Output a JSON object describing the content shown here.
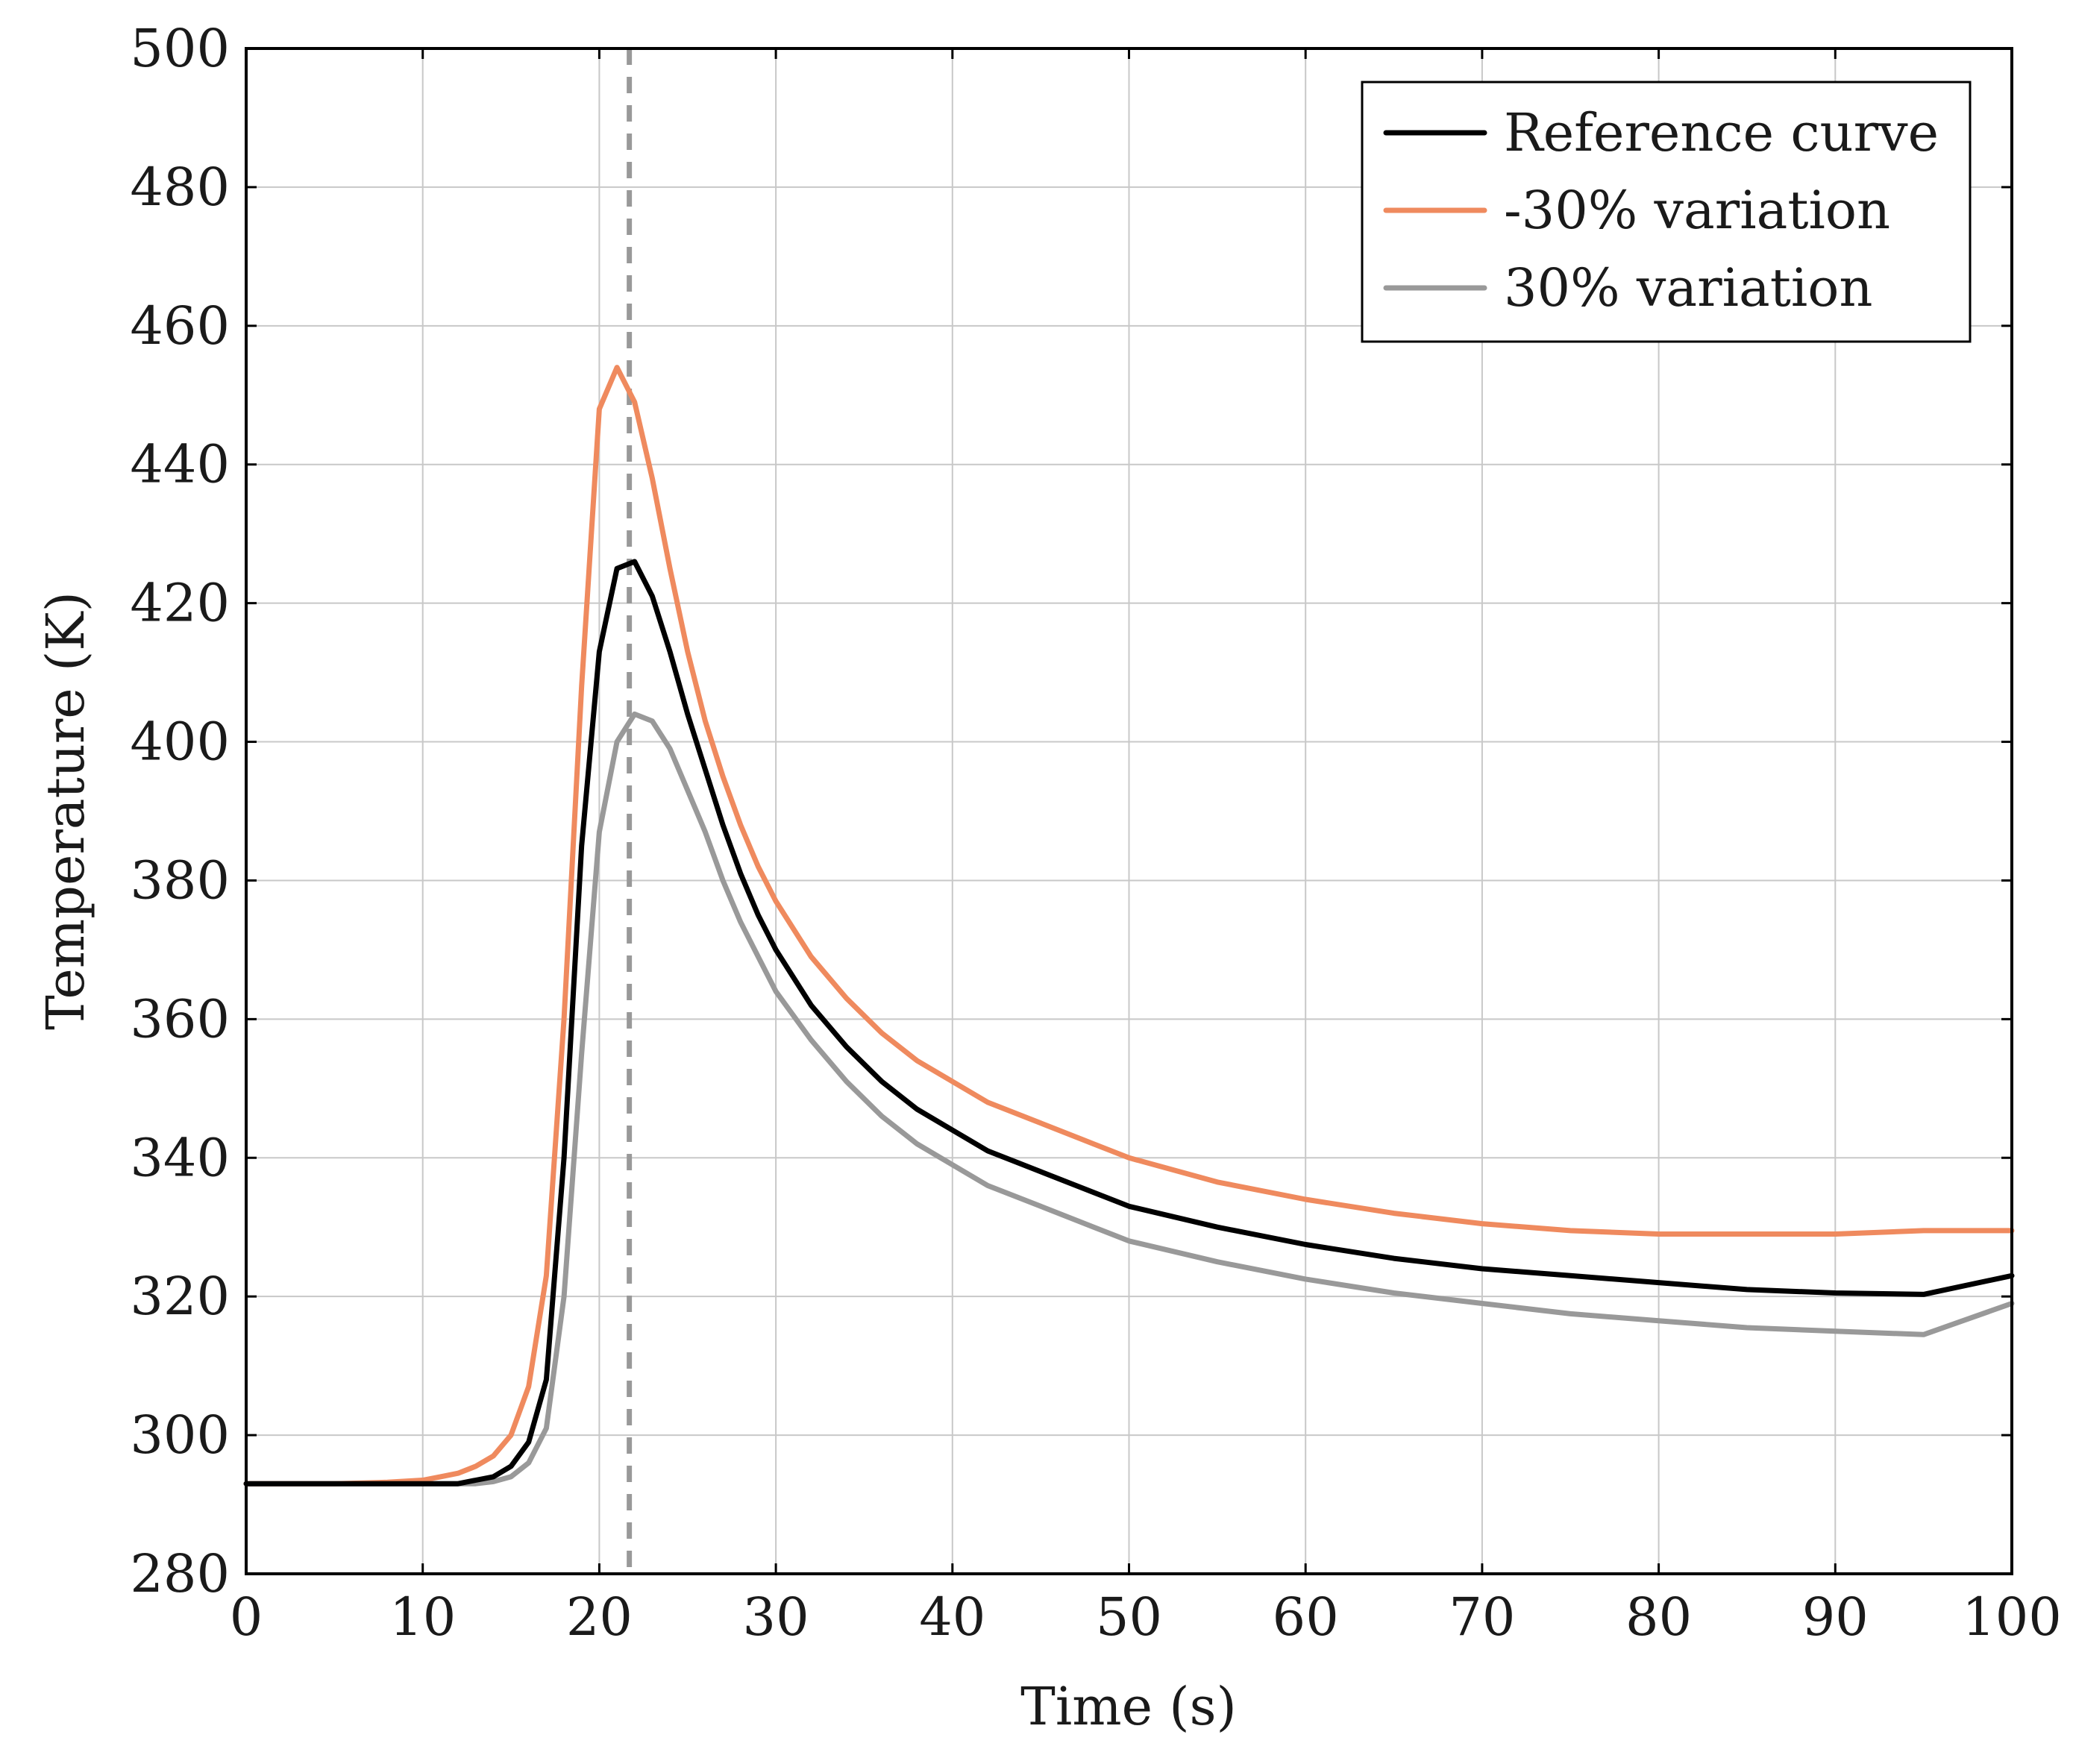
{
  "chart_data": {
    "type": "line",
    "title": "",
    "xlabel": "Time (s)",
    "ylabel": "Temperature (K)",
    "xlim": [
      0,
      100
    ],
    "ylim": [
      280,
      500
    ],
    "xticks": [
      0,
      10,
      20,
      30,
      40,
      50,
      60,
      70,
      80,
      90,
      100
    ],
    "yticks": [
      280,
      300,
      320,
      340,
      360,
      380,
      400,
      420,
      440,
      460,
      480,
      500
    ],
    "grid": true,
    "legend_position": "top-right",
    "reference_line": {
      "x": 21.7,
      "style": "dashed",
      "color": "#999999"
    },
    "series": [
      {
        "name": "Reference curve",
        "color": "#000000",
        "x": [
          0,
          5,
          10,
          12,
          13,
          14,
          15,
          16,
          17,
          18,
          19,
          20,
          21,
          22,
          23,
          24,
          25,
          26,
          27,
          28,
          29,
          30,
          32,
          34,
          36,
          38,
          40,
          42,
          45,
          48,
          50,
          55,
          60,
          65,
          70,
          75,
          80,
          85,
          90,
          95,
          100
        ],
        "y": [
          293,
          293,
          293,
          293,
          293.5,
          294,
          295.5,
          299,
          308,
          340,
          385,
          413,
          425,
          426,
          421,
          413,
          404,
          396,
          388,
          381,
          375,
          370,
          362,
          356,
          351,
          347,
          344,
          341,
          338,
          335,
          333,
          330,
          327.5,
          325.5,
          324,
          323,
          322,
          321,
          320.5,
          320.3,
          323
        ]
      },
      {
        "name": "-30% variation",
        "color": "#ef8a5e",
        "x": [
          0,
          5,
          8,
          10,
          11,
          12,
          13,
          14,
          15,
          16,
          17,
          18,
          19,
          20,
          21,
          22,
          23,
          24,
          25,
          26,
          27,
          28,
          29,
          30,
          32,
          34,
          36,
          38,
          40,
          42,
          45,
          48,
          50,
          55,
          60,
          65,
          70,
          75,
          80,
          85,
          90,
          95,
          100
        ],
        "y": [
          293,
          293,
          293.2,
          293.5,
          294,
          294.5,
          295.5,
          297,
          300,
          307,
          323,
          360,
          408,
          448,
          454,
          449,
          438,
          425,
          413,
          403,
          395,
          388,
          382,
          377,
          369,
          363,
          358,
          354,
          351,
          348,
          345,
          342,
          340,
          336.5,
          334,
          332,
          330.5,
          329.5,
          329,
          329,
          329,
          329.5,
          329.5
        ]
      },
      {
        "name": "30% variation",
        "color": "#999999",
        "x": [
          0,
          5,
          10,
          13,
          14,
          15,
          16,
          17,
          18,
          19,
          20,
          21,
          22,
          23,
          24,
          25,
          26,
          27,
          28,
          29,
          30,
          32,
          34,
          36,
          38,
          40,
          42,
          45,
          48,
          50,
          55,
          60,
          65,
          70,
          75,
          80,
          85,
          90,
          95,
          100
        ],
        "y": [
          293,
          293,
          293,
          293,
          293.3,
          294,
          296,
          301,
          320,
          355,
          387,
          400,
          404,
          403,
          399,
          393,
          387,
          380,
          374,
          369,
          364,
          357,
          351,
          346,
          342,
          339,
          336,
          333,
          330,
          328,
          325,
          322.5,
          320.5,
          319,
          317.5,
          316.5,
          315.5,
          315,
          314.5,
          319
        ]
      }
    ]
  }
}
